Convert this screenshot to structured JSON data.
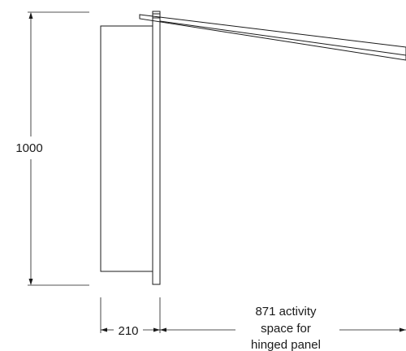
{
  "dimensions": {
    "height_label": "1000",
    "depth_label": "210",
    "activity_space_lines": [
      "871 activity",
      "space for",
      "hinged panel"
    ]
  }
}
